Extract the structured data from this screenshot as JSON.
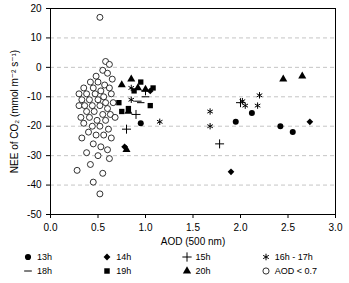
{
  "chart_data": {
    "type": "scatter",
    "x_label": "AOD (500 nm)",
    "y_label": "NEE of CO₂ (mmol m⁻² s⁻¹)",
    "xlim": [
      0,
      3
    ],
    "ylim": [
      -50,
      20
    ],
    "xticks": [
      {
        "value": 0,
        "label": "0.0"
      },
      {
        "value": 0.5,
        "label": "0.5"
      },
      {
        "value": 1,
        "label": "1.0"
      },
      {
        "value": 1.5,
        "label": "1.5"
      },
      {
        "value": 2,
        "label": "2.0"
      },
      {
        "value": 2.5,
        "label": "2.5"
      },
      {
        "value": 3,
        "label": "3.0"
      }
    ],
    "yticks": [
      -50,
      -40,
      -30,
      -20,
      -10,
      0,
      10,
      20
    ],
    "grid": true,
    "legend": "bottom",
    "series": [
      {
        "name": "13h",
        "color": "#000000",
        "marker": "circle",
        "x": [
          0.95,
          1.95,
          2.12,
          2.42,
          2.55
        ],
        "values": [
          -19,
          -18.5,
          -15.5,
          -20,
          -22
        ]
      },
      {
        "name": "14h",
        "color": "#000000",
        "marker": "diamond",
        "x": [
          0.78,
          1.05,
          1.9,
          2.73
        ],
        "values": [
          -27,
          -8,
          -35.5,
          -18.5
        ]
      },
      {
        "name": "15h",
        "color": "#000000",
        "marker": "plus",
        "x": [
          0.8,
          0.9,
          1.0,
          1.78,
          2.0
        ],
        "values": [
          -21,
          -16,
          -8,
          -26,
          -12
        ]
      },
      {
        "name": "16h - 17h",
        "color": "#000000",
        "marker": "asterisk",
        "x": [
          0.85,
          0.85,
          1.15,
          1.68,
          1.68,
          2.02,
          2.05,
          2.18,
          2.2
        ],
        "values": [
          -7,
          -11,
          -18.5,
          -15,
          -20,
          -11.5,
          -13,
          -13,
          -9.5
        ]
      },
      {
        "name": "18h",
        "color": "#000000",
        "marker": "minus",
        "x": [
          0.7,
          0.92,
          0.95,
          1.0
        ],
        "values": [
          -12,
          -11.5,
          -12,
          -10
        ]
      },
      {
        "name": "19h",
        "color": "#000000",
        "marker": "square",
        "x": [
          0.72,
          0.75,
          0.82,
          0.88,
          0.95,
          1.05,
          1.08
        ],
        "values": [
          -12,
          -15,
          -14,
          -8,
          -5,
          -13,
          -7
        ]
      },
      {
        "name": "20h",
        "color": "#000000",
        "marker": "triangle",
        "x": [
          0.75,
          0.8,
          0.82,
          0.85,
          0.92,
          1.0,
          2.45,
          2.65
        ],
        "values": [
          -6,
          -28,
          -15,
          -4,
          -7,
          -7.5,
          -4,
          -3
        ]
      },
      {
        "name": "AOD < 0.7",
        "color": "#000000",
        "marker": "circle-open",
        "x": [
          0.52,
          0.58,
          0.62,
          0.55,
          0.48,
          0.6,
          0.65,
          0.42,
          0.5,
          0.57,
          0.35,
          0.45,
          0.53,
          0.62,
          0.3,
          0.38,
          0.47,
          0.56,
          0.64,
          0.33,
          0.41,
          0.5,
          0.58,
          0.3,
          0.36,
          0.44,
          0.52,
          0.6,
          0.38,
          0.46,
          0.55,
          0.63,
          0.32,
          0.41,
          0.49,
          0.58,
          0.35,
          0.44,
          0.52,
          0.61,
          0.4,
          0.48,
          0.56,
          0.64,
          0.33,
          0.45,
          0.53,
          0.6,
          0.38,
          0.5,
          0.62,
          0.42,
          0.28,
          0.55,
          0.45,
          0.52,
          0.66,
          0.68
        ],
        "values": [
          17,
          2,
          1,
          -1,
          -3,
          -2,
          -4,
          -5,
          -5,
          -6,
          -7,
          -7,
          -8,
          -7,
          -9,
          -9,
          -9,
          -10,
          -9,
          -11,
          -11,
          -11,
          -12,
          -13,
          -13,
          -13,
          -13,
          -14,
          -15,
          -15,
          -16,
          -16,
          -17,
          -17,
          -18,
          -18,
          -19,
          -20,
          -20,
          -21,
          -22,
          -23,
          -23,
          -24,
          -24,
          -26,
          -27,
          -28,
          -29,
          -30,
          -31,
          -33,
          -35,
          -36,
          -39,
          -43,
          -12,
          -17
        ]
      }
    ]
  }
}
